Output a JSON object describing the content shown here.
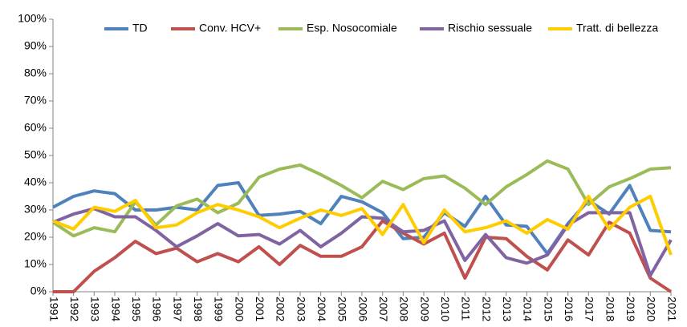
{
  "chart_data": {
    "type": "line",
    "x": [
      "1991",
      "1992",
      "1993",
      "1994",
      "1995",
      "1996",
      "1997",
      "1998",
      "1999",
      "2000",
      "2001",
      "2002",
      "2003",
      "2004",
      "2005",
      "2006",
      "2007",
      "2008",
      "2009",
      "2010",
      "2011",
      "2012",
      "2013",
      "2014",
      "2015",
      "2016",
      "2017",
      "2018",
      "2019",
      "2020",
      "2021"
    ],
    "series": [
      {
        "name": "TD",
        "color": "#4f81bd",
        "values": [
          31,
          35,
          37,
          36,
          30,
          30,
          31,
          30,
          39,
          40,
          28,
          28.5,
          29.5,
          25,
          35,
          33,
          29,
          19.5,
          20,
          29,
          24,
          35,
          24.5,
          24,
          14,
          25,
          33.5,
          28.5,
          39,
          22.5,
          22
        ]
      },
      {
        "name": "Conv. HCV+",
        "color": "#c0504d",
        "values": [
          0,
          0,
          7.5,
          12.5,
          18.5,
          14,
          16,
          11,
          14,
          11,
          16.5,
          10,
          17,
          13,
          13,
          16.5,
          26,
          21.5,
          17.5,
          21.5,
          5,
          20,
          19.5,
          13,
          8,
          19,
          13.5,
          25.5,
          21.5,
          5,
          0
        ]
      },
      {
        "name": "Esp. Nosocomiale",
        "color": "#9bbb59",
        "values": [
          25.5,
          20.5,
          23.5,
          22,
          33,
          24.5,
          31.5,
          34,
          29,
          32.5,
          42,
          45,
          46.5,
          43,
          39,
          34.5,
          40.5,
          37.5,
          41.5,
          42.5,
          38,
          32,
          38.5,
          43,
          48,
          45,
          32,
          38.5,
          41.5,
          45,
          45.5
        ]
      },
      {
        "name": "Rischio sessuale",
        "color": "#8064a2",
        "values": [
          25.5,
          28.5,
          30.5,
          27.5,
          27.5,
          22.5,
          16.5,
          20.5,
          25,
          20.5,
          21,
          17.5,
          22.5,
          16.5,
          21.5,
          27.5,
          27,
          22,
          22.5,
          26,
          11.5,
          21,
          12.5,
          10.5,
          13.5,
          24.5,
          29,
          29,
          29,
          6,
          19
        ]
      },
      {
        "name": "Tratt. di bellezza",
        "color": "#ffcc00",
        "values": [
          26,
          23,
          31,
          29.5,
          33.5,
          23.5,
          24.5,
          29,
          32,
          30,
          27.5,
          23.5,
          27,
          30,
          28,
          30.5,
          21,
          32,
          18,
          30,
          22,
          23.5,
          26,
          21.5,
          26.5,
          23,
          35,
          23,
          31,
          35,
          13.5
        ]
      }
    ],
    "ylim": [
      0,
      100
    ],
    "yticks": [
      {
        "value": 0,
        "label": "0%"
      },
      {
        "value": 10,
        "label": "10%"
      },
      {
        "value": 20,
        "label": "20%"
      },
      {
        "value": 30,
        "label": "30%"
      },
      {
        "value": 40,
        "label": "40%"
      },
      {
        "value": 50,
        "label": "50%"
      },
      {
        "value": 60,
        "label": "60%"
      },
      {
        "value": 70,
        "label": "70%"
      },
      {
        "value": 80,
        "label": "80%"
      },
      {
        "value": 90,
        "label": "90%"
      },
      {
        "value": 100,
        "label": "100%"
      }
    ],
    "legend": "top",
    "grid": false
  }
}
